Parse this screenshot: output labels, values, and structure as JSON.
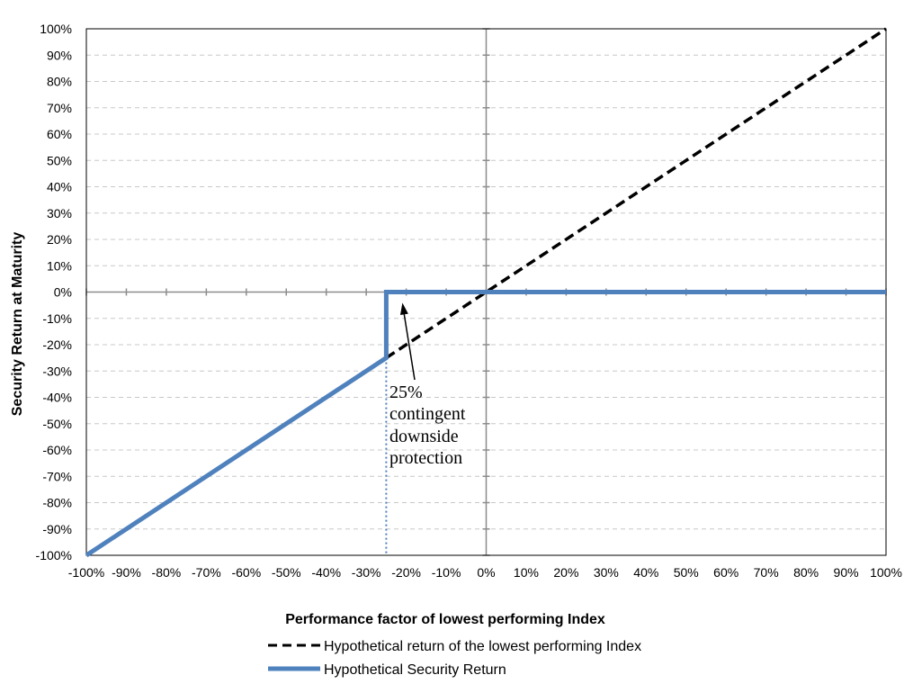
{
  "chart_data": {
    "type": "line",
    "xlabel": "Performance factor of lowest performing Index",
    "ylabel": "Security Return at Maturity",
    "xlim": [
      -100,
      100
    ],
    "ylim": [
      -100,
      100
    ],
    "x_ticks": [
      -100,
      -90,
      -80,
      -70,
      -60,
      -50,
      -40,
      -30,
      -20,
      -10,
      0,
      10,
      20,
      30,
      40,
      50,
      60,
      70,
      80,
      90,
      100
    ],
    "y_ticks": [
      -100,
      -90,
      -80,
      -70,
      -60,
      -50,
      -40,
      -30,
      -20,
      -10,
      0,
      10,
      20,
      30,
      40,
      50,
      60,
      70,
      80,
      90,
      100
    ],
    "x_tick_labels": [
      "-100%",
      "-90%",
      "-80%",
      "-70%",
      "-60%",
      "-50%",
      "-40%",
      "-30%",
      "-20%",
      "-10%",
      "0%",
      "10%",
      "20%",
      "30%",
      "40%",
      "50%",
      "60%",
      "70%",
      "80%",
      "90%",
      "100%"
    ],
    "y_tick_labels": [
      "-100%",
      "-90%",
      "-80%",
      "-70%",
      "-60%",
      "-50%",
      "-40%",
      "-30%",
      "-20%",
      "-10%",
      "0%",
      "10%",
      "20%",
      "30%",
      "40%",
      "50%",
      "60%",
      "70%",
      "80%",
      "90%",
      "100%"
    ],
    "grid": "horizontal dashed",
    "legend_position": "bottom",
    "series": [
      {
        "name": "Hypothetical return of the lowest performing Index",
        "style": "dashed",
        "color": "#000000",
        "x": [
          -25,
          100
        ],
        "y": [
          -25,
          100
        ]
      },
      {
        "name": "Hypothetical Security Return",
        "style": "solid",
        "color": "#4f81bd",
        "x": [
          -100,
          -25,
          -25,
          100
        ],
        "y": [
          -100,
          -25,
          0,
          0
        ]
      }
    ],
    "reference_line": {
      "x": -25,
      "style": "dotted",
      "color": "#4f81bd"
    },
    "annotation": {
      "lines": [
        "25%",
        "contingent",
        "downside",
        "protection"
      ],
      "arrow_to": [
        -25,
        0
      ]
    }
  }
}
